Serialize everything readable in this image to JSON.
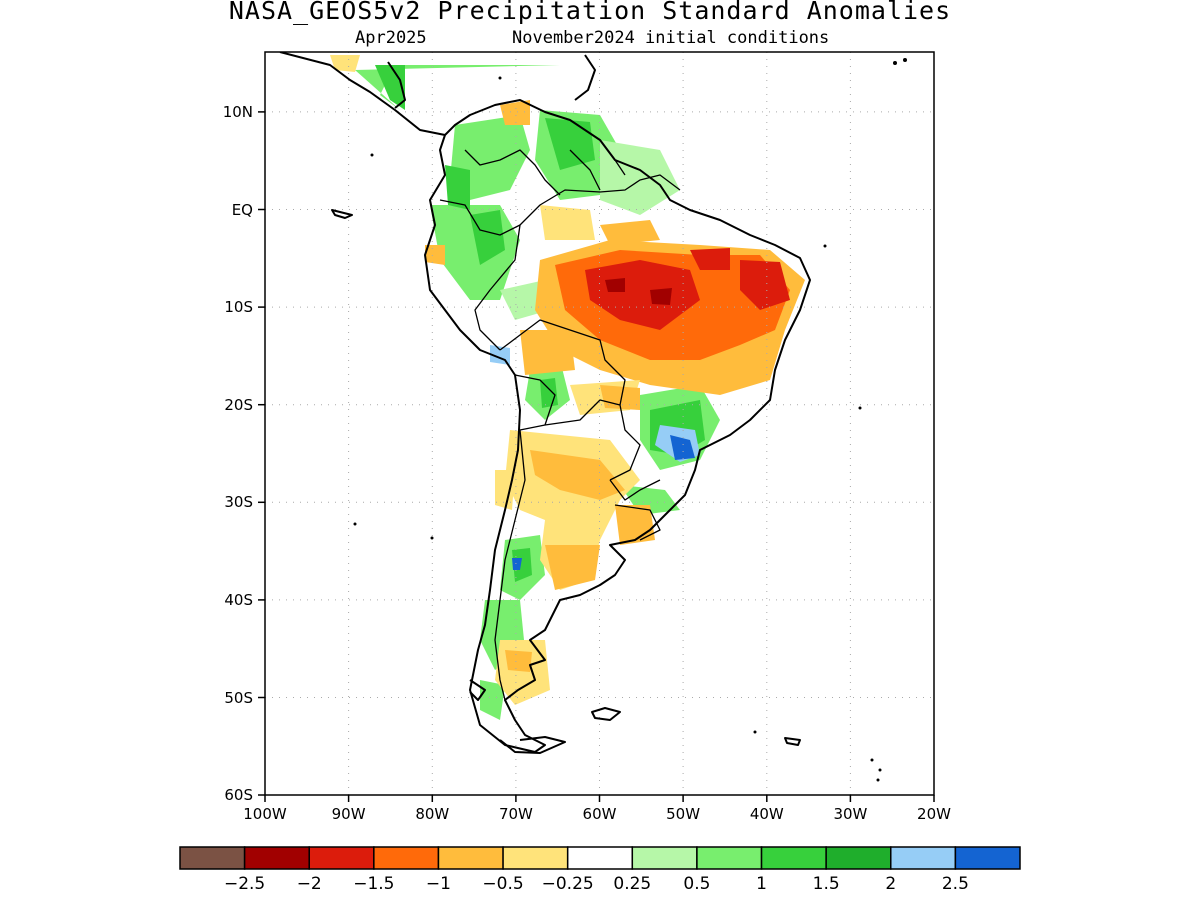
{
  "title": "NASA_GEOS5v2 Precipitation Standard Anomalies",
  "subtitle_left": "Apr2025",
  "subtitle_right": "November2024 initial conditions",
  "lat_labels": [
    "10N",
    "EQ",
    "10S",
    "20S",
    "30S",
    "40S",
    "50S",
    "60S"
  ],
  "lon_labels": [
    "100W",
    "90W",
    "80W",
    "70W",
    "60W",
    "50W",
    "40W",
    "30W",
    "20W"
  ],
  "colorbar": {
    "colors": [
      "#7b5244",
      "#a10000",
      "#dc1c0c",
      "#ff6a0a",
      "#ffbc3c",
      "#ffe37a",
      "#ffffff",
      "#b6f7a8",
      "#78ee6e",
      "#37d03c",
      "#1fae2c",
      "#96cdf6",
      "#1464d2"
    ],
    "labels": [
      "-2.5",
      "-2",
      "-1.5",
      "-1",
      "-0.5",
      "-0.25",
      "0.25",
      "0.5",
      "1",
      "1.5",
      "2",
      "2.5"
    ]
  },
  "chart_data": {
    "type": "heatmap",
    "title": "NASA_GEOS5v2 Precipitation Standard Anomalies",
    "subtitle": "Apr2025    November2024 initial conditions",
    "x_range": [
      -100,
      -20
    ],
    "y_range": [
      -60,
      15
    ],
    "x_ticks": [
      "100W",
      "90W",
      "80W",
      "70W",
      "60W",
      "50W",
      "40W",
      "30W",
      "20W"
    ],
    "y_ticks": [
      "10N",
      "EQ",
      "10S",
      "20S",
      "30S",
      "40S",
      "50S",
      "60S"
    ],
    "levels": [
      -2.5,
      -2,
      -1.5,
      -1,
      -0.5,
      -0.25,
      0.25,
      0.5,
      1,
      1.5,
      2,
      2.5
    ],
    "grid": "dotted",
    "anomaly_regions": [
      {
        "label": "central Brazil dry",
        "lon_range": [
          -58,
          -45
        ],
        "lat_range": [
          -12,
          -5
        ],
        "value": -2
      },
      {
        "label": "northeast Brazil dry",
        "lon_range": [
          -45,
          -36
        ],
        "lat_range": [
          -15,
          -4
        ],
        "value": -1.5
      },
      {
        "label": "southern Brazil wet",
        "lon_range": [
          -53,
          -46
        ],
        "lat_range": [
          -26,
          -20
        ],
        "value": 2.5
      },
      {
        "label": "Venezuela wet",
        "lon_range": [
          -67,
          -61
        ],
        "lat_range": [
          3,
          10
        ],
        "value": 1.5
      },
      {
        "label": "Colombia wet",
        "lon_range": [
          -78,
          -71
        ],
        "lat_range": [
          -3,
          8
        ],
        "value": 1
      },
      {
        "label": "Argentina dry",
        "lon_range": [
          -68,
          -60
        ],
        "lat_range": [
          -40,
          -24
        ],
        "value": -0.5
      },
      {
        "label": "central Chile wet",
        "lon_range": [
          -73,
          -70
        ],
        "lat_range": [
          -40,
          -33
        ],
        "value": 1.5
      },
      {
        "label": "Patagonia dry",
        "lon_range": [
          -72,
          -66
        ],
        "lat_range": [
          -52,
          -44
        ],
        "value": -0.5
      }
    ]
  }
}
